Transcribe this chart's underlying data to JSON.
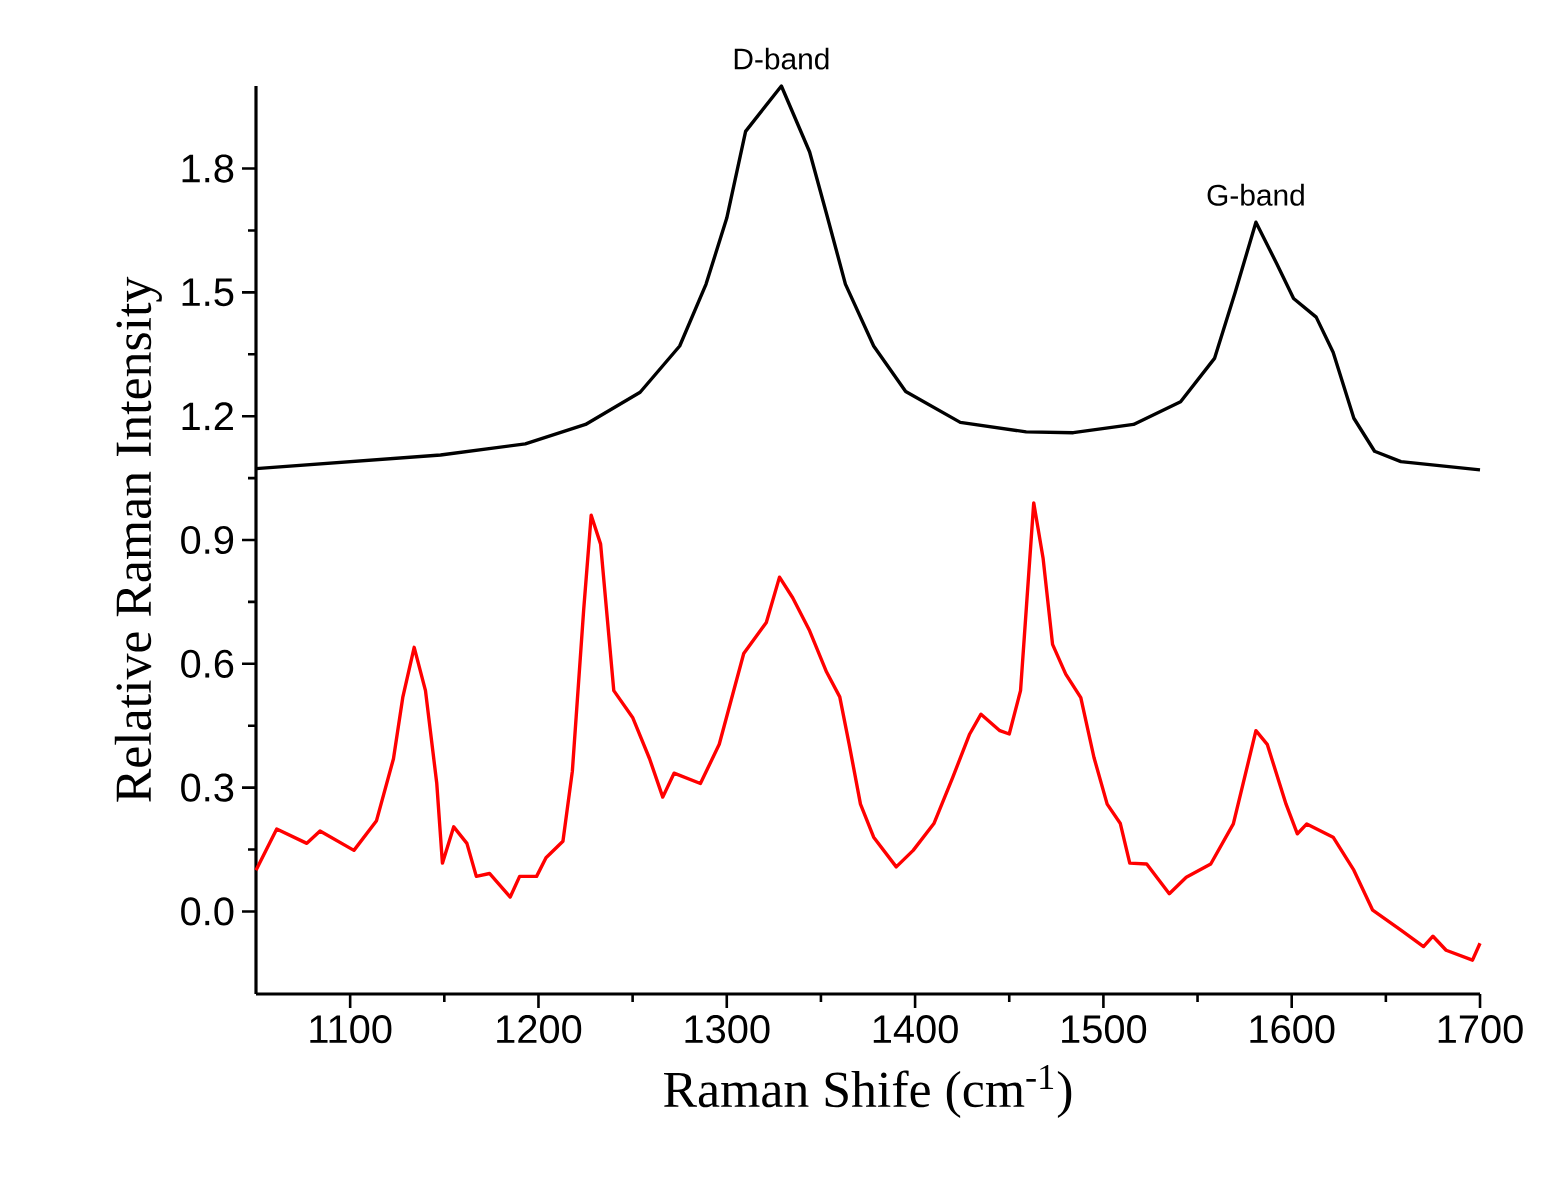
{
  "chart_data": {
    "type": "line",
    "xlabel": "Raman Shife (cm$^{-1}$)",
    "ylabel": "Relative Raman Intensity",
    "xlim": [
      1050,
      1700
    ],
    "ylim": [
      -0.2,
      2.0
    ],
    "xticks": [
      1100,
      1200,
      1300,
      1400,
      1500,
      1600,
      1700
    ],
    "yticks": [
      {
        "value": 0,
        "label": "0.0"
      },
      0.3,
      0.6,
      0.9,
      1.2,
      1.5,
      1.8
    ],
    "annotations": [
      {
        "text": "D-band",
        "x": 1329,
        "y": 2.0
      },
      {
        "text": "G-band",
        "x": 1581,
        "y": 1.67
      }
    ],
    "series": [
      {
        "color": "#000000",
        "x": [
          1050,
          1148,
          1193,
          1225,
          1254,
          1275,
          1289,
          1300,
          1310,
          1329,
          1344,
          1353,
          1363,
          1378,
          1395,
          1424,
          1459,
          1484,
          1516,
          1541,
          1559,
          1570,
          1581,
          1592,
          1601,
          1613,
          1622,
          1633,
          1644,
          1658,
          1700
        ],
        "values": [
          1.073,
          1.106,
          1.133,
          1.18,
          1.258,
          1.37,
          1.52,
          1.68,
          1.89,
          2.0,
          1.84,
          1.69,
          1.52,
          1.37,
          1.26,
          1.185,
          1.162,
          1.16,
          1.18,
          1.235,
          1.34,
          1.5,
          1.67,
          1.57,
          1.485,
          1.44,
          1.355,
          1.195,
          1.115,
          1.09,
          1.07
        ]
      },
      {
        "color": "#ff0000",
        "x": [
          1050,
          1061,
          1077,
          1084,
          1102,
          1114,
          1123,
          1128,
          1134,
          1140,
          1146,
          1149,
          1155,
          1162,
          1167,
          1174,
          1185,
          1190,
          1199,
          1204,
          1213,
          1218,
          1224,
          1228,
          1233,
          1240,
          1250,
          1259,
          1266,
          1272,
          1286,
          1296,
          1309,
          1321,
          1328,
          1335,
          1344,
          1353,
          1360,
          1365,
          1371,
          1378,
          1390,
          1399,
          1410,
          1420,
          1429,
          1435,
          1445,
          1450,
          1456,
          1463,
          1468,
          1473,
          1480,
          1488,
          1495,
          1502,
          1509,
          1514,
          1523,
          1535,
          1544,
          1557,
          1569,
          1581,
          1587,
          1597,
          1603,
          1608,
          1622,
          1633,
          1643,
          1658,
          1670,
          1675,
          1682,
          1696,
          1700
        ],
        "values": [
          0.1,
          0.2,
          0.165,
          0.195,
          0.148,
          0.22,
          0.37,
          0.52,
          0.64,
          0.535,
          0.31,
          0.117,
          0.205,
          0.165,
          0.085,
          0.092,
          0.035,
          0.085,
          0.085,
          0.13,
          0.17,
          0.34,
          0.73,
          0.96,
          0.89,
          0.535,
          0.47,
          0.37,
          0.277,
          0.335,
          0.31,
          0.405,
          0.625,
          0.7,
          0.81,
          0.76,
          0.68,
          0.58,
          0.52,
          0.405,
          0.26,
          0.18,
          0.108,
          0.148,
          0.213,
          0.325,
          0.43,
          0.478,
          0.438,
          0.43,
          0.535,
          0.99,
          0.855,
          0.647,
          0.575,
          0.518,
          0.373,
          0.26,
          0.213,
          0.117,
          0.115,
          0.043,
          0.083,
          0.115,
          0.212,
          0.438,
          0.405,
          0.26,
          0.188,
          0.212,
          0.18,
          0.1,
          0.003,
          -0.045,
          -0.085,
          -0.06,
          -0.094,
          -0.118,
          -0.077
        ]
      }
    ]
  }
}
